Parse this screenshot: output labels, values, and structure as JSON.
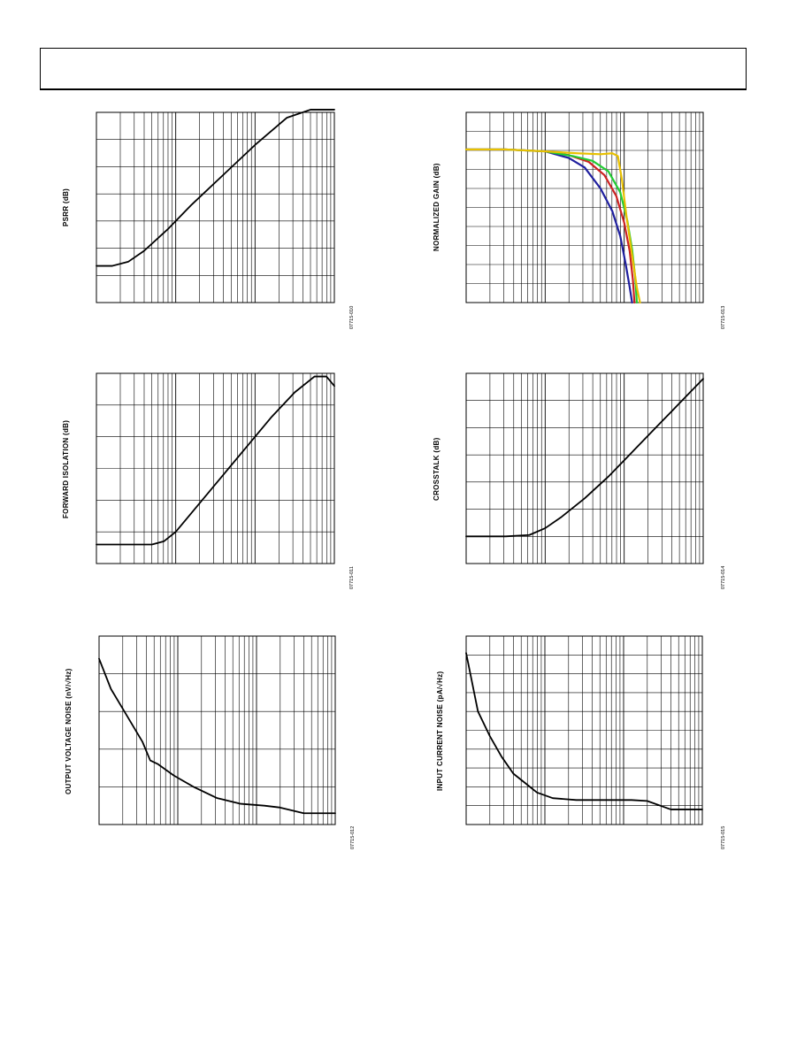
{
  "page": {
    "header_title": ""
  },
  "chart_data": [
    {
      "id": "psrr",
      "type": "line",
      "title": "",
      "xlabel": "",
      "ylabel": "PSRR (dB)",
      "figure_code": "07715-010",
      "x_scale": "log",
      "x_decades": 3,
      "y_divisions": 7,
      "grid": true,
      "xlim": [
        0,
        3
      ],
      "ylim": [
        0,
        7
      ],
      "series": [
        {
          "color": "#000000",
          "x": [
            0,
            0.2,
            0.4,
            0.6,
            0.9,
            1.2,
            1.6,
            2.0,
            2.4,
            2.7,
            3.0
          ],
          "y": [
            1.35,
            1.35,
            1.5,
            1.9,
            2.7,
            3.6,
            4.7,
            5.8,
            6.8,
            7.1,
            7.1
          ]
        }
      ]
    },
    {
      "id": "normalized-gain",
      "type": "line",
      "title": "",
      "xlabel": "",
      "ylabel": "NORMALIZED GAIN (dB)",
      "figure_code": "07715-013",
      "x_scale": "log",
      "x_decades": 3,
      "y_divisions": 10,
      "grid": true,
      "xlim": [
        0,
        3
      ],
      "ylim": [
        0,
        10
      ],
      "series": [
        {
          "color": "#1f1f9e",
          "x": [
            0,
            0.5,
            1.0,
            1.3,
            1.5,
            1.7,
            1.85,
            1.95,
            2.02,
            2.07,
            2.1
          ],
          "y": [
            8.05,
            8.05,
            7.95,
            7.6,
            7.1,
            6.0,
            4.8,
            3.5,
            2.0,
            0.8,
            0.0
          ]
        },
        {
          "color": "#cc2222",
          "x": [
            0,
            0.5,
            1.0,
            1.3,
            1.55,
            1.75,
            1.9,
            2.0,
            2.07,
            2.11,
            2.13
          ],
          "y": [
            8.05,
            8.05,
            7.95,
            7.75,
            7.4,
            6.7,
            5.6,
            4.2,
            2.7,
            1.2,
            0.0
          ]
        },
        {
          "color": "#22cc33",
          "x": [
            0,
            0.5,
            1.0,
            1.35,
            1.6,
            1.8,
            1.95,
            2.04,
            2.1,
            2.14,
            2.16
          ],
          "y": [
            8.05,
            8.05,
            7.95,
            7.7,
            7.45,
            6.9,
            5.8,
            4.3,
            2.8,
            1.3,
            0.0
          ]
        },
        {
          "color": "#e8c000",
          "x": [
            0,
            0.5,
            1.0,
            1.4,
            1.7,
            1.85,
            1.92,
            1.97,
            2.03,
            2.1,
            2.16,
            2.2
          ],
          "y": [
            8.05,
            8.05,
            7.95,
            7.85,
            7.8,
            7.85,
            7.7,
            6.5,
            4.5,
            2.5,
            0.8,
            0.0
          ]
        }
      ]
    },
    {
      "id": "forward-isolation",
      "type": "line",
      "title": "",
      "xlabel": "",
      "ylabel": "FORWARD ISOLATION (dB)",
      "figure_code": "07715-011",
      "x_scale": "log",
      "x_decades": 3,
      "y_divisions": 6,
      "grid": true,
      "xlim": [
        0,
        3
      ],
      "ylim": [
        0,
        6
      ],
      "series": [
        {
          "color": "#000000",
          "x": [
            0,
            0.4,
            0.7,
            0.85,
            1.0,
            1.3,
            1.6,
            1.9,
            2.2,
            2.5,
            2.75,
            2.9,
            3.0
          ],
          "y": [
            0.6,
            0.6,
            0.6,
            0.7,
            1.0,
            1.9,
            2.8,
            3.7,
            4.6,
            5.4,
            5.9,
            5.9,
            5.6
          ]
        }
      ]
    },
    {
      "id": "crosstalk",
      "type": "line",
      "title": "",
      "xlabel": "",
      "ylabel": "CROSSTALK (dB)",
      "figure_code": "07715-014",
      "x_scale": "log",
      "x_decades": 3,
      "y_divisions": 7,
      "grid": true,
      "xlim": [
        0,
        3
      ],
      "ylim": [
        0,
        7
      ],
      "series": [
        {
          "color": "#000000",
          "x": [
            0,
            0.5,
            0.8,
            1.0,
            1.2,
            1.5,
            1.8,
            2.1,
            2.4,
            2.7,
            3.0
          ],
          "y": [
            1.0,
            1.0,
            1.05,
            1.3,
            1.7,
            2.4,
            3.2,
            4.1,
            5.0,
            5.9,
            6.8
          ]
        }
      ]
    },
    {
      "id": "output-voltage-noise",
      "type": "line",
      "title": "",
      "xlabel": "",
      "ylabel": "OUTPUT VOLTAGE NOISE (nV/√Hz)",
      "figure_code": "07715-012",
      "x_scale": "log",
      "x_decades": 3,
      "y_divisions": 5,
      "grid": true,
      "xlim": [
        0,
        3
      ],
      "ylim": [
        0,
        5
      ],
      "series": [
        {
          "color": "#000000",
          "x": [
            0,
            0.15,
            0.35,
            0.55,
            0.65,
            0.75,
            0.95,
            1.2,
            1.5,
            1.8,
            2.1,
            2.3,
            2.6,
            3.0
          ],
          "y": [
            4.4,
            3.6,
            2.9,
            2.2,
            1.7,
            1.6,
            1.3,
            1.0,
            0.7,
            0.55,
            0.5,
            0.45,
            0.3,
            0.3
          ]
        }
      ]
    },
    {
      "id": "input-current-noise",
      "type": "line",
      "title": "",
      "xlabel": "",
      "ylabel": "INPUT CURRENT NOISE (pA/√Hz)",
      "figure_code": "07715-015",
      "x_scale": "log",
      "x_decades": 3,
      "y_divisions": 10,
      "grid": true,
      "xlim": [
        0,
        3
      ],
      "ylim": [
        0,
        10
      ],
      "series": [
        {
          "color": "#000000",
          "x": [
            0,
            0.15,
            0.3,
            0.45,
            0.6,
            0.75,
            0.9,
            1.1,
            1.4,
            1.8,
            2.1,
            2.3,
            2.6,
            3.0
          ],
          "y": [
            9.1,
            6.0,
            4.7,
            3.6,
            2.7,
            2.2,
            1.7,
            1.4,
            1.3,
            1.3,
            1.3,
            1.25,
            0.8,
            0.8
          ]
        }
      ]
    }
  ]
}
